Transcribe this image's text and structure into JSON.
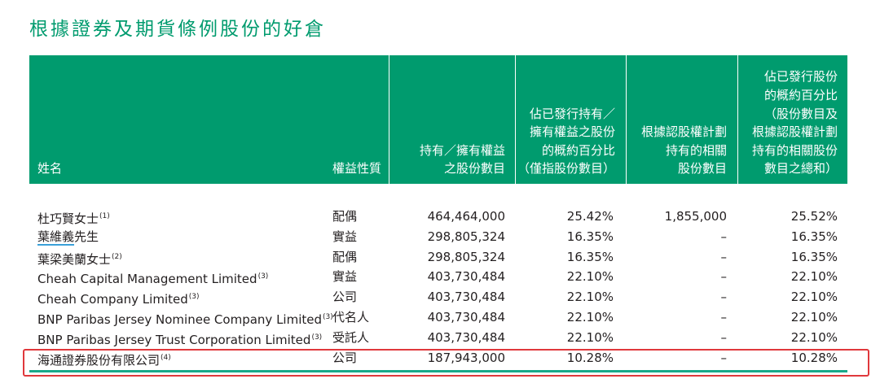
{
  "title": "根據證券及期貨條例股份的好倉",
  "colors": {
    "header_bg": "#009b6e",
    "highlight": "#e0383c",
    "underline": "#3aa0d8"
  },
  "columns": {
    "name": "姓名",
    "nature": "權益性質",
    "held": "持有／擁有權益\n之股份數目",
    "pct": "佔已發行持有／\n擁有權益之股份\n的概約百分比\n（僅指股份數目）",
    "option": "根據認股權計劃\n持有的相關\n股份數目",
    "total": "佔已發行股份\n的概約百分比\n（股份數目及\n根據認股權計劃\n持有的相關股份\n數目之總和）"
  },
  "rows": [
    {
      "name": "杜巧賢女士",
      "note": "(1)",
      "nature": "配偶",
      "held": "464,464,000",
      "pct": "25.42%",
      "option": "1,855,000",
      "total": "25.52%"
    },
    {
      "name_underlined": "葉維義",
      "name_rest": "先生",
      "nature": "實益",
      "held": "298,805,324",
      "pct": "16.35%",
      "option": "–",
      "total": "16.35%"
    },
    {
      "name": "葉梁美蘭女士",
      "note": "(2)",
      "nature": "配偶",
      "held": "298,805,324",
      "pct": "16.35%",
      "option": "–",
      "total": "16.35%"
    },
    {
      "name": "Cheah Capital Management Limited",
      "note": "(3)",
      "nature": "實益",
      "held": "403,730,484",
      "pct": "22.10%",
      "option": "–",
      "total": "22.10%"
    },
    {
      "name": "Cheah Company Limited",
      "note": "(3)",
      "nature": "公司",
      "held": "403,730,484",
      "pct": "22.10%",
      "option": "–",
      "total": "22.10%"
    },
    {
      "name": "BNP Paribas Jersey Nominee Company Limited",
      "note": "(3)",
      "nature": "代名人",
      "held": "403,730,484",
      "pct": "22.10%",
      "option": "–",
      "total": "22.10%"
    },
    {
      "name": "BNP Paribas Jersey Trust Corporation Limited",
      "note": "(3)",
      "nature": "受託人",
      "held": "403,730,484",
      "pct": "22.10%",
      "option": "–",
      "total": "22.10%"
    },
    {
      "name": "海通證券股份有限公司",
      "note": "(4)",
      "nature": "公司",
      "held": "187,943,000",
      "pct": "10.28%",
      "option": "–",
      "total": "10.28%"
    }
  ]
}
